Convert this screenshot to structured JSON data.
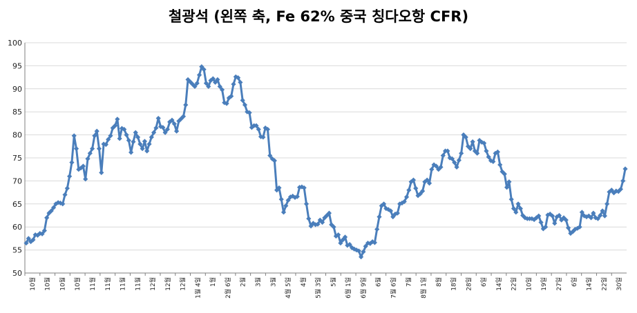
{
  "chart_data": {
    "type": "line",
    "title": "철광석 (왼쪽 축, Fe 62% 중국 칭다오항 CFR)",
    "xlabel": "",
    "ylabel": "",
    "ylim": [
      50,
      100
    ],
    "yticks": [
      50,
      55,
      60,
      65,
      70,
      75,
      80,
      85,
      90,
      95,
      100
    ],
    "grid": "horizontal",
    "legend": "none",
    "colors": {
      "line": "#4a7ebb",
      "marker": "#4a7ebb",
      "grid": "#d9d9d9",
      "axis": "#7f7f7f"
    },
    "x_tick_labels": [
      "10월",
      "10월",
      "10월",
      "10월",
      "11월",
      "11월",
      "11월",
      "11월",
      "12월",
      "12월",
      "12월",
      "1월 4일",
      "1월",
      "2월 6일",
      "2월",
      "3월",
      "3월",
      "4월 5일",
      "4월",
      "5월 3일",
      "5월",
      "6월 1일",
      "6월 9일",
      "6월",
      "7월 6일",
      "7월",
      "8월 1일",
      "8월",
      "18일",
      "28일",
      "6일",
      "14일",
      "22일",
      "10일",
      "19일",
      "27일",
      "6일",
      "14일",
      "22일",
      "30일"
    ],
    "series": [
      {
        "values": [
          56.5,
          57.5,
          56.8,
          57.2,
          58.3,
          58.2,
          58.6,
          58.5,
          59.2,
          62.0,
          63.0,
          63.5,
          64.2,
          65.0,
          65.3,
          65.2,
          65.0,
          67.0,
          68.4,
          71.0,
          74.0,
          79.8,
          77.0,
          72.5,
          72.8,
          73.2,
          70.4,
          74.8,
          76.0,
          77.0,
          79.8,
          80.8,
          77.0,
          71.8,
          78.0,
          77.9,
          79.0,
          79.8,
          81.5,
          82.0,
          83.4,
          79.2,
          81.4,
          81.2,
          80.0,
          78.8,
          76.2,
          78.5,
          80.5,
          79.5,
          78.0,
          77.0,
          78.6,
          76.5,
          78.0,
          79.5,
          80.5,
          81.5,
          83.6,
          81.8,
          81.6,
          80.5,
          81.2,
          82.8,
          83.2,
          82.4,
          80.8,
          83.0,
          83.5,
          84.0,
          86.5,
          92.0,
          91.5,
          91.0,
          90.5,
          91.2,
          93.0,
          94.8,
          94.2,
          91.2,
          90.5,
          91.8,
          92.2,
          91.4,
          92.0,
          90.5,
          89.8,
          87.0,
          86.8,
          88.0,
          88.4,
          91.0,
          92.6,
          92.4,
          91.4,
          87.5,
          86.5,
          85.0,
          84.8,
          81.6,
          82.0,
          82.0,
          81.2,
          79.6,
          79.5,
          81.5,
          81.2,
          75.5,
          74.8,
          74.4,
          68.0,
          68.5,
          66.0,
          63.2,
          64.6,
          65.8,
          66.5,
          66.7,
          66.4,
          66.6,
          68.6,
          68.7,
          68.5,
          65.0,
          61.8,
          60.2,
          60.8,
          60.5,
          60.6,
          61.5,
          61.0,
          62.0,
          62.5,
          63.0,
          60.5,
          60.0,
          58.0,
          58.3,
          56.5,
          57.2,
          57.8,
          56.0,
          56.2,
          55.5,
          55.2,
          55.0,
          54.8,
          53.5,
          54.6,
          55.8,
          56.5,
          56.4,
          56.8,
          56.6,
          59.5,
          62.2,
          64.6,
          65.0,
          64.0,
          63.8,
          63.5,
          62.2,
          62.8,
          63.0,
          65.0,
          65.2,
          65.5,
          66.5,
          68.0,
          69.8,
          70.2,
          68.4,
          66.8,
          67.2,
          67.8,
          69.8,
          70.2,
          69.5,
          72.5,
          73.5,
          73.2,
          72.5,
          73.0,
          75.5,
          76.5,
          76.5,
          75.0,
          74.8,
          74.0,
          73.0,
          74.5,
          76.0,
          80.0,
          79.5,
          77.5,
          77.0,
          78.5,
          76.5,
          76.0,
          78.8,
          78.4,
          78.2,
          76.5,
          75.2,
          74.4,
          74.2,
          76.0,
          76.3,
          73.5,
          72.0,
          71.5,
          68.6,
          69.8,
          66.0,
          64.0,
          63.2,
          65.0,
          64.0,
          62.5,
          62.0,
          61.8,
          61.8,
          61.8,
          61.6,
          62.0,
          62.4,
          61.0,
          59.6,
          60.0,
          62.6,
          62.8,
          62.4,
          60.8,
          62.2,
          62.5,
          61.5,
          62.0,
          61.5,
          59.8,
          58.6,
          59.0,
          59.5,
          59.7,
          60.0,
          63.2,
          62.4,
          62.2,
          62.4,
          62.0,
          63.0,
          62.0,
          61.8,
          62.5,
          63.5,
          62.4,
          65.0,
          67.6,
          68.0,
          67.4,
          67.8,
          67.7,
          68.2,
          70.0,
          72.6
        ]
      }
    ]
  }
}
